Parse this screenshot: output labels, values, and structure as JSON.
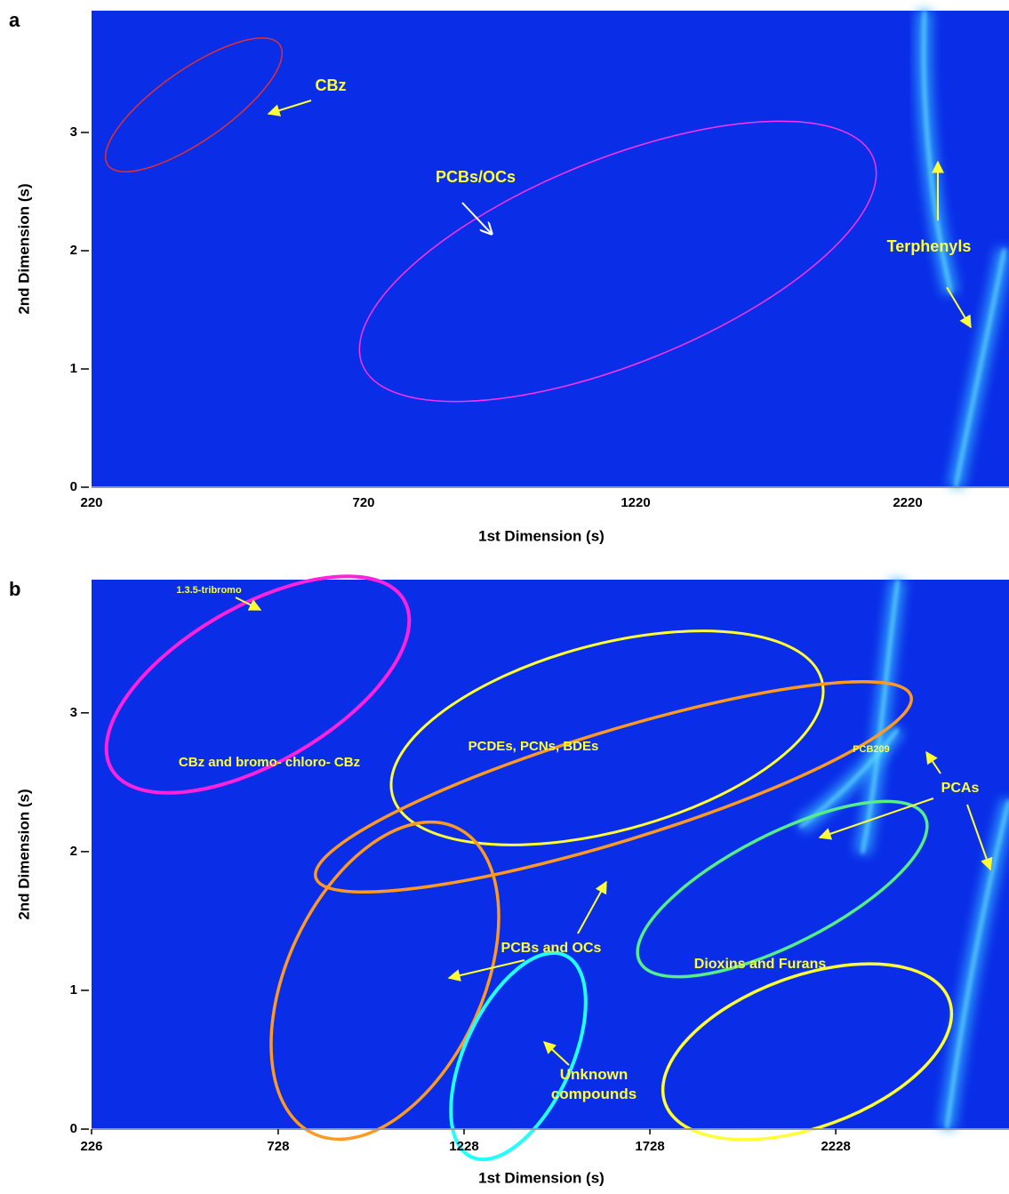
{
  "chart_data": [
    {
      "type": "heatmap",
      "panel_label": "a",
      "x_label": "1st Dimension (s)",
      "y_label": "2nd Dimension (s)",
      "categories": [
        "220",
        "720",
        "1220",
        "2220"
      ],
      "ylim": [
        0,
        4.03
      ],
      "yticks": [
        0,
        1,
        2,
        3
      ],
      "annotations": [
        "CBz",
        "PCBs/OCs",
        "Terphenyls"
      ]
    },
    {
      "type": "heatmap",
      "panel_label": "b",
      "x_label": "1st Dimension (s)",
      "y_label": "2nd Dimension (s)",
      "xlim": [
        226,
        2694
      ],
      "xticks": [
        226,
        728,
        1228,
        1728,
        2228
      ],
      "ylim": [
        0,
        3.96
      ],
      "yticks": [
        0,
        1,
        2,
        3
      ],
      "annotations": [
        "1.3.5-tribromo",
        "CBz and bromo- chloro- CBz",
        "PCDEs, PCNs, BDEs",
        "PCB209",
        "PCAs",
        "PCBs and OCs",
        "Unknown compounds",
        "Dioxins and Furans"
      ]
    }
  ]
}
